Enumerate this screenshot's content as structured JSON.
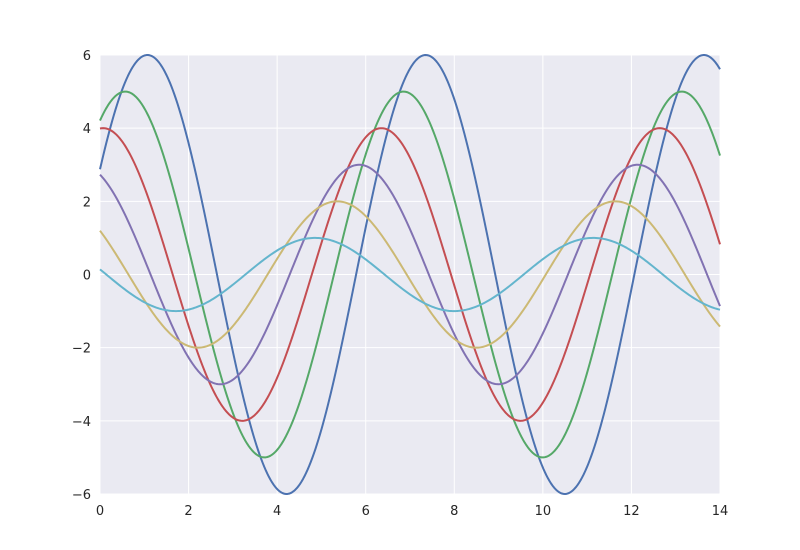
{
  "chart_data": {
    "type": "line",
    "title": "",
    "xlabel": "",
    "ylabel": "",
    "xlim": [
      0,
      14
    ],
    "ylim": [
      -6,
      6
    ],
    "xticks": [
      0,
      2,
      4,
      6,
      8,
      10,
      12,
      14
    ],
    "yticks": [
      -6,
      -4,
      -2,
      0,
      2,
      4,
      6
    ],
    "xtick_labels": [
      "0",
      "2",
      "4",
      "6",
      "8",
      "10",
      "12",
      "14"
    ],
    "ytick_labels": [
      "−6",
      "−4",
      "−2",
      "0",
      "2",
      "4",
      "6"
    ],
    "grid": true,
    "legend": "none",
    "style": {
      "background": "#EAEAF2",
      "grid_color": "#FFFFFF",
      "text_color": "#262626"
    },
    "function": "y = amplitude * sin(x + phase)",
    "series": [
      {
        "amplitude": 6,
        "phase": 0.5,
        "color": "#4C72B0"
      },
      {
        "amplitude": 5,
        "phase": 1.0,
        "color": "#55A868"
      },
      {
        "amplitude": 4,
        "phase": 1.5,
        "color": "#C44E52"
      },
      {
        "amplitude": 3,
        "phase": 2.0,
        "color": "#8172B2"
      },
      {
        "amplitude": 2,
        "phase": 2.5,
        "color": "#CCB974"
      },
      {
        "amplitude": 1,
        "phase": 3.0,
        "color": "#64B5CD"
      }
    ]
  }
}
